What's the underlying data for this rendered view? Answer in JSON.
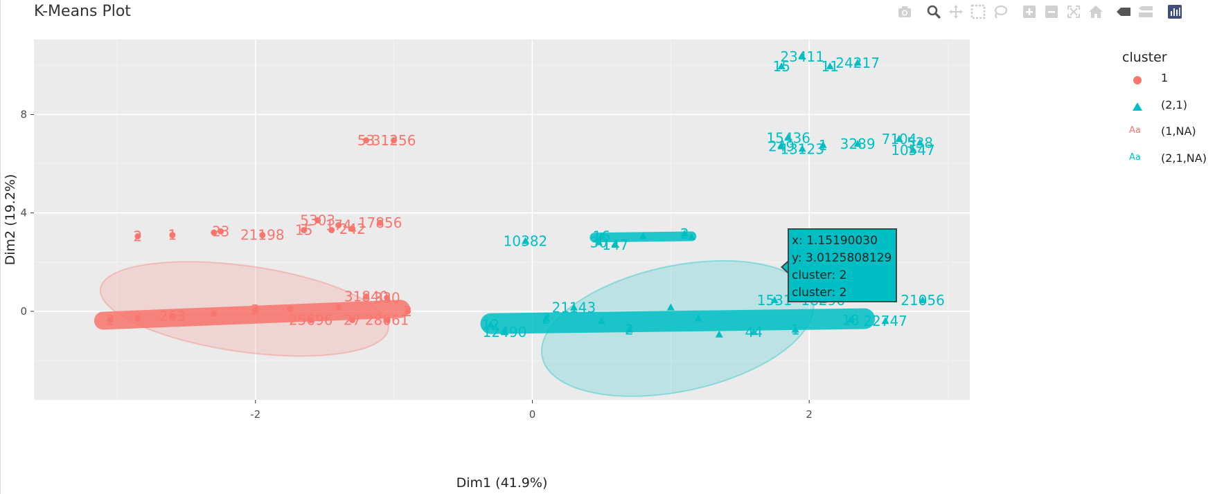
{
  "chart_title": "K-Means Plot",
  "modebar": [
    {
      "name": "camera-icon"
    },
    {
      "name": "zoom-icon"
    },
    {
      "name": "pan-icon"
    },
    {
      "name": "box-select-icon"
    },
    {
      "name": "lasso-select-icon"
    },
    {
      "name": "zoom-in-icon"
    },
    {
      "name": "zoom-out-icon"
    },
    {
      "name": "autoscale-icon"
    },
    {
      "name": "reset-axes-icon"
    },
    {
      "name": "spike-lines-icon"
    },
    {
      "name": "compare-hover-icon"
    },
    {
      "name": "plotly-logo-icon"
    }
  ],
  "legend": {
    "title": "cluster",
    "items": [
      {
        "label": "1",
        "symbol": "circle",
        "color": "#f8766d"
      },
      {
        "label": "(2,1)",
        "symbol": "triangle",
        "color": "#00bfc4"
      },
      {
        "label": "(1,NA)",
        "symbol": "text",
        "text": "Aa",
        "color": "#f8766d"
      },
      {
        "label": "(2,1,NA)",
        "symbol": "text",
        "text": "Aa",
        "color": "#00bfc4"
      }
    ]
  },
  "tooltip": {
    "x_line": "x:  1.15190030",
    "y_line": "y:  3.0125808129",
    "cluster_line_1": "cluster: 2",
    "cluster_line_2": "cluster: 2"
  },
  "chart_data": {
    "type": "scatter",
    "title": "K-Means Plot",
    "xlabel": "Dim1 (41.9%)",
    "ylabel": "Dim2 (19.2%)",
    "xlim": [
      -3.6,
      3.16
    ],
    "ylim": [
      -3.6,
      11.05
    ],
    "x_ticks": [
      -2,
      0,
      2
    ],
    "x_tick_labels": [
      "-2",
      "0",
      "2"
    ],
    "y_ticks": [
      0,
      4,
      8
    ],
    "y_tick_labels": [
      "0",
      "4",
      "8"
    ],
    "grid": true,
    "legend_position": "right",
    "colors": {
      "cluster_1": "#f8766d",
      "cluster_2": "#00bfc4",
      "panel": "#ebebeb",
      "grid": "#ffffff"
    },
    "ellipses": [
      {
        "cluster": "1",
        "color": "#f8766d",
        "center": [
          -2.08,
          0.1
        ],
        "rx": 1.05,
        "ry": 1.75,
        "rotation_deg": 8
      },
      {
        "cluster": "2",
        "color": "#00bfc4",
        "center": [
          1.05,
          -0.7
        ],
        "rx": 1.0,
        "ry": 2.55,
        "rotation_deg": -12
      }
    ],
    "series": [
      {
        "name": "1",
        "color": "#f8766d",
        "points": [
          {
            "x": -3.05,
            "y": -0.35,
            "label": "2"
          },
          {
            "x": -2.85,
            "y": -0.3,
            "label": ""
          },
          {
            "x": -2.6,
            "y": -0.2,
            "label": "263"
          },
          {
            "x": -2.3,
            "y": -0.1,
            "label": ""
          },
          {
            "x": -2.0,
            "y": 0.05,
            "label": "2"
          },
          {
            "x": -1.75,
            "y": 0.1,
            "label": ""
          },
          {
            "x": -1.6,
            "y": -0.35,
            "label": "25696"
          },
          {
            "x": -1.4,
            "y": 0.15,
            "label": ""
          },
          {
            "x": -1.3,
            "y": -0.35,
            "label": "27"
          },
          {
            "x": -1.2,
            "y": 0.6,
            "label": "31840"
          },
          {
            "x": -1.05,
            "y": 0.55,
            "label": "330"
          },
          {
            "x": -1.05,
            "y": -0.35,
            "label": "28061"
          },
          {
            "x": -0.9,
            "y": 0.0,
            "label": "2"
          },
          {
            "x": -2.85,
            "y": 3.05,
            "label": "2"
          },
          {
            "x": -2.6,
            "y": 3.1,
            "label": "1"
          },
          {
            "x": -2.3,
            "y": 3.2,
            "label": ""
          },
          {
            "x": -2.25,
            "y": 3.25,
            "label": "23"
          },
          {
            "x": -1.95,
            "y": 3.1,
            "label": "21198"
          },
          {
            "x": -1.65,
            "y": 3.3,
            "label": "15"
          },
          {
            "x": -1.45,
            "y": 3.3,
            "label": ""
          },
          {
            "x": -1.55,
            "y": 3.7,
            "label": "5303"
          },
          {
            "x": -1.4,
            "y": 3.5,
            "label": "174"
          },
          {
            "x": -1.3,
            "y": 3.35,
            "label": "242"
          },
          {
            "x": -1.1,
            "y": 3.6,
            "label": "17856"
          },
          {
            "x": -1.2,
            "y": 6.95,
            "label": "53"
          },
          {
            "x": -1.0,
            "y": 6.95,
            "label": "31256"
          }
        ]
      },
      {
        "name": "(2,1)",
        "color": "#00bfc4",
        "points": [
          {
            "x": -0.3,
            "y": -0.55,
            "label": "12"
          },
          {
            "x": -0.2,
            "y": -0.85,
            "label": "12490"
          },
          {
            "x": 0.1,
            "y": -0.3,
            "label": "2"
          },
          {
            "x": 0.5,
            "y": -0.4,
            "label": ""
          },
          {
            "x": 0.7,
            "y": -0.75,
            "label": "2"
          },
          {
            "x": 0.3,
            "y": 0.15,
            "label": "21143"
          },
          {
            "x": 1.0,
            "y": 0.15,
            "label": ""
          },
          {
            "x": 1.2,
            "y": -0.3,
            "label": ""
          },
          {
            "x": 1.35,
            "y": -0.95,
            "label": ""
          },
          {
            "x": 1.6,
            "y": -0.85,
            "label": "44"
          },
          {
            "x": 1.75,
            "y": 0.45,
            "label": "1531"
          },
          {
            "x": 1.9,
            "y": -0.75,
            "label": "1"
          },
          {
            "x": 2.1,
            "y": 0.45,
            "label": "18296"
          },
          {
            "x": 2.3,
            "y": -0.35,
            "label": "18"
          },
          {
            "x": 2.55,
            "y": -0.4,
            "label": "22747"
          },
          {
            "x": 2.82,
            "y": 0.45,
            "label": "21056"
          },
          {
            "x": -0.05,
            "y": 2.85,
            "label": "10382"
          },
          {
            "x": 0.48,
            "y": 2.8,
            "label": "30"
          },
          {
            "x": 0.6,
            "y": 2.7,
            "label": "147"
          },
          {
            "x": 0.5,
            "y": 3.05,
            "label": "16"
          },
          {
            "x": 0.8,
            "y": 3.05,
            "label": ""
          },
          {
            "x": 1.1,
            "y": 3.15,
            "label": "2"
          },
          {
            "x": 1.15,
            "y": 3.01,
            "label": ""
          },
          {
            "x": 1.8,
            "y": 6.7,
            "label": "249"
          },
          {
            "x": 1.85,
            "y": 7.05,
            "label": "15436"
          },
          {
            "x": 1.95,
            "y": 6.6,
            "label": "13123"
          },
          {
            "x": 2.1,
            "y": 6.75,
            "label": "1"
          },
          {
            "x": 2.35,
            "y": 6.8,
            "label": "3289"
          },
          {
            "x": 2.65,
            "y": 7.0,
            "label": "7104"
          },
          {
            "x": 2.8,
            "y": 6.85,
            "label": "538"
          },
          {
            "x": 2.75,
            "y": 6.55,
            "label": "10547"
          },
          {
            "x": 1.8,
            "y": 9.95,
            "label": "15"
          },
          {
            "x": 1.95,
            "y": 10.35,
            "label": "23411"
          },
          {
            "x": 2.15,
            "y": 9.95,
            "label": "11"
          },
          {
            "x": 2.35,
            "y": 10.1,
            "label": "24217"
          }
        ]
      }
    ]
  }
}
